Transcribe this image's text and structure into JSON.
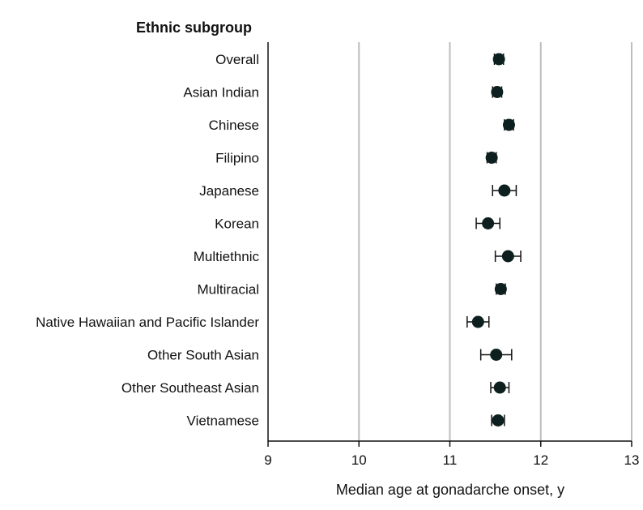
{
  "chart_data": {
    "type": "scatter",
    "column_header": "Ethnic subgroup",
    "xlabel": "Median age at gonadarche onset, y",
    "xlim": [
      9,
      13
    ],
    "xticks": [
      9,
      10,
      11,
      12,
      13
    ],
    "grid": "vertical",
    "categories": [
      "Overall",
      "Asian Indian",
      "Chinese",
      "Filipino",
      "Japanese",
      "Korean",
      "Multiethnic",
      "Multiracial",
      "Native Hawaiian and Pacific Islander",
      "Other South Asian",
      "Other Southeast Asian",
      "Vietnamese"
    ],
    "values": [
      11.54,
      11.52,
      11.65,
      11.46,
      11.6,
      11.42,
      11.64,
      11.56,
      11.31,
      11.51,
      11.55,
      11.53
    ],
    "ci_low": [
      11.49,
      11.47,
      11.6,
      11.41,
      11.47,
      11.29,
      11.5,
      11.51,
      11.19,
      11.34,
      11.45,
      11.46
    ],
    "ci_high": [
      11.59,
      11.57,
      11.7,
      11.51,
      11.73,
      11.55,
      11.78,
      11.61,
      11.43,
      11.68,
      11.65,
      11.6
    ],
    "colors": {
      "point": "#0d1f1f",
      "grid": "#bdbdbd",
      "axis": "#111111"
    }
  }
}
